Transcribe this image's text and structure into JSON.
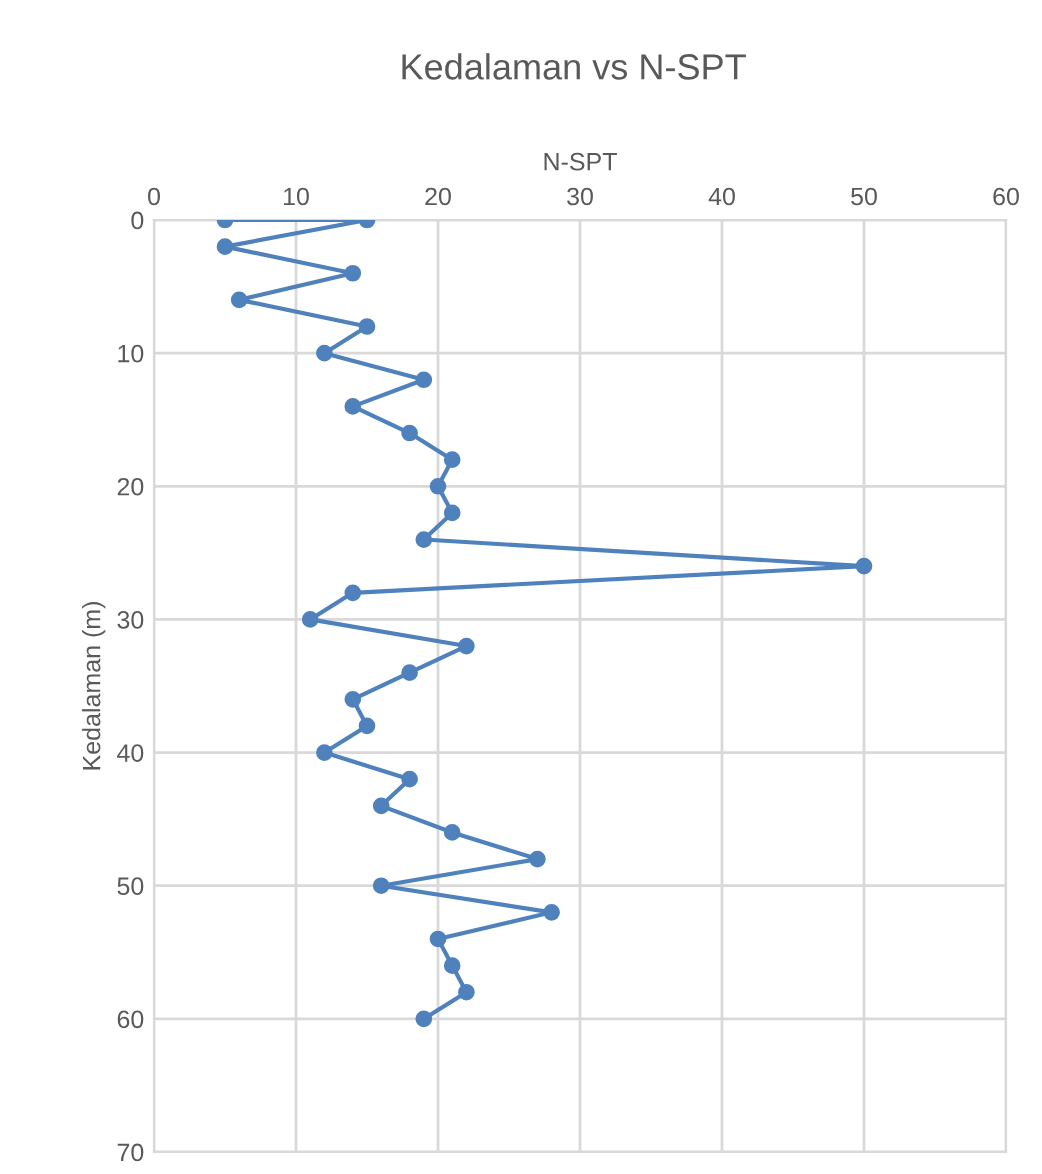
{
  "chart_data": {
    "type": "line",
    "title": "Kedalaman vs N-SPT",
    "xlabel": "N-SPT",
    "ylabel": "Kedalaman (m)",
    "series": [
      {
        "color": "#4f81bd",
        "x": [
          5,
          15,
          5,
          14,
          6,
          15,
          12,
          19,
          14,
          18,
          21,
          20,
          21,
          19,
          50,
          14,
          11,
          22,
          18,
          14,
          15,
          12,
          18,
          16,
          21,
          27,
          16,
          28,
          20,
          21,
          22,
          19
        ],
        "values": [
          0,
          0,
          2,
          4,
          6,
          8,
          10,
          12,
          14,
          16,
          18,
          20,
          22,
          24,
          26,
          28,
          30,
          32,
          34,
          36,
          38,
          40,
          42,
          44,
          46,
          48,
          50,
          52,
          54,
          56,
          58,
          60
        ]
      }
    ],
    "xlim": [
      0,
      60
    ],
    "xticks": [
      0,
      10,
      20,
      30,
      40,
      50,
      60
    ],
    "ylim": [
      70,
      0
    ],
    "yticks": [
      0,
      10,
      20,
      30,
      40,
      50,
      60,
      70
    ],
    "grid": true,
    "marker": "circle",
    "line_style": "solid"
  }
}
